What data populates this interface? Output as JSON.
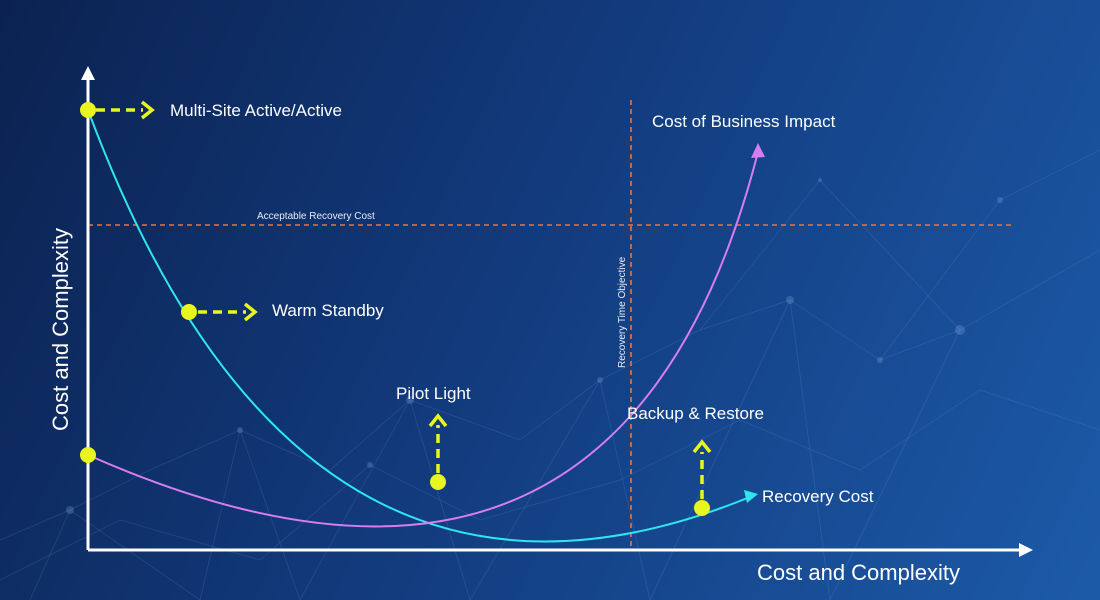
{
  "axes": {
    "x_label": "Cost and Complexity",
    "y_label": "Cost and Complexity"
  },
  "thresholds": {
    "horizontal_label": "Acceptable Recovery Cost",
    "vertical_label": "Recovery Time Objective"
  },
  "curves": {
    "recovery_cost_label": "Recovery Cost",
    "business_impact_label": "Cost of Business Impact"
  },
  "strategies": [
    {
      "label": "Multi-Site Active/Active"
    },
    {
      "label": "Warm Standby"
    },
    {
      "label": "Pilot Light"
    },
    {
      "label": "Backup & Restore"
    }
  ],
  "colors": {
    "recovery_cost": "#2fe6f0",
    "business_impact": "#d77df0",
    "threshold": "#e8743e",
    "marker": "#e9f51e",
    "axis": "#ffffff"
  }
}
